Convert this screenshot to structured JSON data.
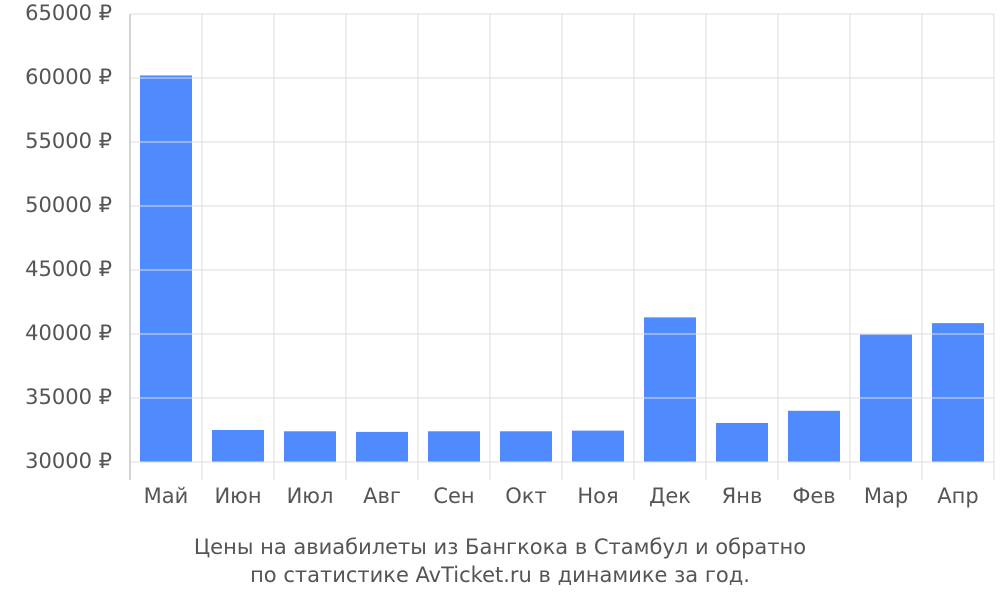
{
  "chart_data": {
    "type": "bar",
    "title": [
      "Цены на авиабилеты из Бангкока в Стамбул и обратно",
      "по статистике AvTicket.ru в динамике за год."
    ],
    "categories": [
      "Май",
      "Июн",
      "Июл",
      "Авг",
      "Сен",
      "Окт",
      "Ноя",
      "Дек",
      "Янв",
      "Фев",
      "Мар",
      "Апр"
    ],
    "values": [
      60200,
      32500,
      32400,
      32350,
      32400,
      32400,
      32450,
      41300,
      33050,
      34000,
      39950,
      40850
    ],
    "color": "#4f8bff",
    "ylim": [
      30000,
      65000
    ],
    "yticks": [
      {
        "value": 30000,
        "label": "30000 ₽"
      },
      {
        "value": 35000,
        "label": "35000 ₽"
      },
      {
        "value": 40000,
        "label": "40000 ₽"
      },
      {
        "value": 45000,
        "label": "45000 ₽"
      },
      {
        "value": 50000,
        "label": "50000 ₽"
      },
      {
        "value": 55000,
        "label": "55000 ₽"
      },
      {
        "value": 60000,
        "label": "60000 ₽"
      },
      {
        "value": 65000,
        "label": "65000 ₽"
      }
    ],
    "grid": true
  }
}
